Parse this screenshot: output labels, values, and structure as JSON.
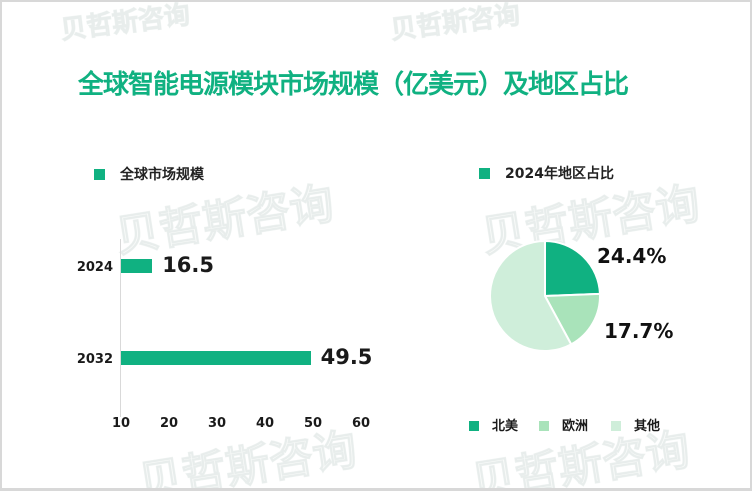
{
  "title": "全球智能电源模块市场规模（亿美元）及地区占比",
  "colors": {
    "accent": "#10b181",
    "title": "#10b181",
    "axis": "#d9d9d9",
    "text": "#1a1a1a"
  },
  "watermark": {
    "brand": "贝哲斯咨询",
    "logo_mark": "M"
  },
  "bar_section": {
    "legend": "全球市场规模"
  },
  "pie_section": {
    "legend": "2024年地区占比"
  },
  "chart_data": [
    {
      "type": "bar",
      "orientation": "horizontal",
      "title": "全球市场规模",
      "unit": "亿美元",
      "categories": [
        "2024",
        "2032"
      ],
      "values": [
        16.5,
        49.5
      ],
      "value_labels": [
        "16.5",
        "49.5"
      ],
      "xlabel": "",
      "ylabel": "",
      "xlim": [
        10,
        60
      ],
      "x_ticks": [
        "10",
        "20",
        "30",
        "40",
        "50",
        "60"
      ],
      "grid": false,
      "bar_color": "#10b181",
      "legend_position": "top-left"
    },
    {
      "type": "pie",
      "title": "2024年地区占比",
      "labels": [
        "北美",
        "欧洲",
        "其他"
      ],
      "values": [
        24.4,
        17.7,
        57.9
      ],
      "data_labels": [
        "24.4%",
        "17.7%",
        ""
      ],
      "colors": [
        "#10b181",
        "#a9e3ba",
        "#cfeeda"
      ],
      "start_angle_deg": -90,
      "direction": "clockwise",
      "legend_position": "bottom"
    }
  ]
}
